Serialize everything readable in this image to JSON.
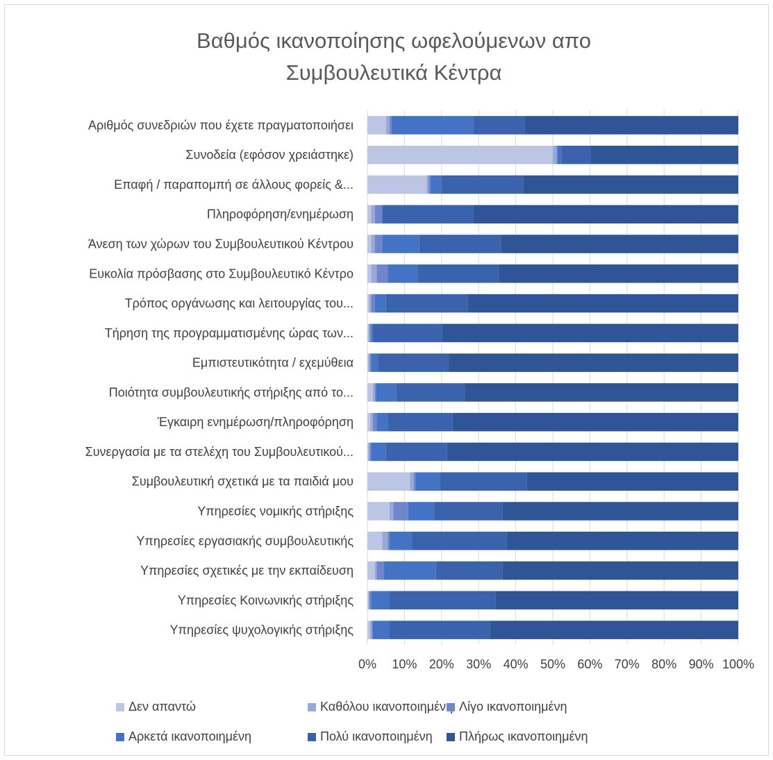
{
  "chart_data": {
    "type": "bar",
    "orientation": "horizontal",
    "stacked": "percent",
    "title_lines": [
      "Βαθμός ικανοποίησης ωφελούμενων απο",
      "Συμβουλευτικά Κέντρα"
    ],
    "categories": [
      "Αριθμός συνεδριών που έχετε πραγματοποιήσει",
      "Συνοδεία (εφόσον χρειάστηκε)",
      "Επαφή / παραπομπή σε άλλους φορείς &...",
      "Πληροφόρηση/ενημέρωση",
      "Άνεση των χώρων του Συμβουλευτικού Κέντρου",
      "Ευκολία πρόσβασης στο Συμβουλευτικό Κέντρο",
      "Τρόπος οργάνωσης και λειτουργίας του...",
      "Τήρηση της προγραμματισμένης ώρας των...",
      "Εμπιστευτικότητα / εχεμύθεια",
      "Ποιότητα συμβουλευτικής στήριξης από το...",
      "Έγκαιρη ενημέρωση/πληροφόρηση",
      "Συνεργασία με τα στελέχη του Συμβουλευτικού...",
      "Συμβουλευτική σχετικά με τα παιδιά μου",
      "Υπηρεσίες νομικής στήριξης",
      "Υπηρεσίες εργασιακής συμβουλευτικής",
      "Υπηρεσίες σχετικές με την εκπαίδευση",
      "Υπηρεσίες Κοινωνικής στήριξης",
      "Υπηρεσίες ψυχολογικής στήριξης"
    ],
    "series": [
      {
        "name": "Δεν απαντώ",
        "color": "#bcc6e4",
        "values": [
          5,
          50,
          16,
          1,
          1,
          1,
          0.5,
          0.3,
          0.3,
          1.5,
          0.8,
          0.3,
          11.5,
          6,
          4,
          2,
          0.3,
          0.7
        ]
      },
      {
        "name": "Καθόλου ικανοποιημένη",
        "color": "#98a8d8",
        "values": [
          1,
          1,
          0.5,
          1,
          1,
          1.5,
          0.5,
          0.3,
          0.3,
          0.5,
          0.7,
          0.3,
          1,
          1,
          1.5,
          0.5,
          0.2,
          0.5
        ]
      },
      {
        "name": "Λίγο ικανοποιημένη",
        "color": "#6f86ca",
        "values": [
          0.5,
          0.3,
          0.5,
          2,
          2,
          3,
          1,
          0.5,
          0.4,
          0.3,
          1,
          0.4,
          0.5,
          4,
          0.5,
          2,
          0.5,
          0.3
        ]
      },
      {
        "name": "Αρκετά ικανοποιημένη",
        "color": "#4472c4",
        "values": [
          22,
          1,
          3,
          0,
          10,
          8,
          3,
          0.5,
          2,
          5.5,
          3,
          4,
          6.5,
          7,
          6,
          14,
          5,
          4.5
        ]
      },
      {
        "name": "Πολύ ικανοποιημένη",
        "color": "#3a62ad",
        "values": [
          14,
          8,
          22,
          24.5,
          22,
          22,
          22,
          18.5,
          19,
          18.5,
          17.5,
          16.5,
          23.5,
          18.5,
          25.5,
          18,
          28.5,
          27
        ]
      },
      {
        "name": "Πλήρως ικανοποιημένη",
        "color": "#2f5597",
        "values": [
          57.5,
          39.7,
          58,
          71.5,
          64,
          64.5,
          73,
          79.9,
          78,
          73.7,
          77,
          78.5,
          57,
          63.5,
          62.5,
          63.5,
          65.5,
          67
        ]
      }
    ],
    "x_ticks": [
      "0%",
      "10%",
      "20%",
      "30%",
      "40%",
      "50%",
      "60%",
      "70%",
      "80%",
      "90%",
      "100%"
    ],
    "xlim": [
      0,
      100
    ],
    "grid": true,
    "legend_position": "bottom"
  }
}
